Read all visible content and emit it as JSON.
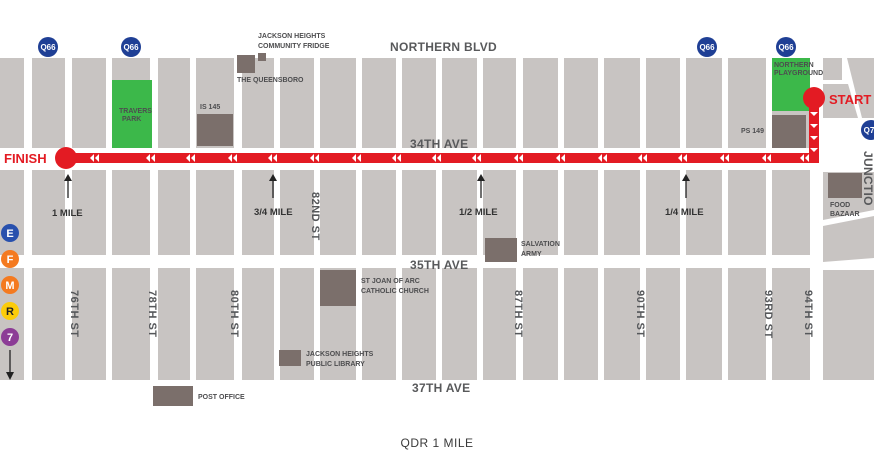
{
  "title": "QDR 1 MILE",
  "avenues": {
    "northern_blvd": "NORTHERN BLVD",
    "ave34": "34TH AVE",
    "ave35": "35TH AVE",
    "ave37": "37TH AVE",
    "junction": "JUNCTIO"
  },
  "streets": {
    "s76": "76TH ST",
    "s78": "78TH ST",
    "s80": "80TH ST",
    "s82": "82ND ST",
    "s87": "87TH ST",
    "s90": "90TH ST",
    "s93": "93RD ST",
    "s94": "94TH ST"
  },
  "route": {
    "start_label": "START",
    "finish_label": "FINISH",
    "color": "#e31b23"
  },
  "mile_markers": {
    "m1": "1 MILE",
    "m34": "3/4 MILE",
    "m12": "1/2 MILE",
    "m14": "1/4 MILE"
  },
  "landmarks": {
    "community_fridge_l1": "JACKSON HEIGHTS",
    "community_fridge_l2": "COMMUNITY FRIDGE",
    "queensboro": "THE QUEENSBORO",
    "is145": "IS 145",
    "travers_l1": "TRAVERS",
    "travers_l2": "PARK",
    "northern_pg_l1": "NORTHERN",
    "northern_pg_l2": "PLAYGROUND",
    "ps149": "PS 149",
    "food_bazaar_l1": "FOOD",
    "food_bazaar_l2": "BAZAAR",
    "salvation_l1": "SALVATION",
    "salvation_l2": "ARMY",
    "st_joan_l1": "ST JOAN OF ARC",
    "st_joan_l2": "CATHOLIC CHURCH",
    "library_l1": "JACKSON HEIGHTS",
    "library_l2": "PUBLIC LIBRARY",
    "post_office": "POST OFFICE"
  },
  "bus_stops": {
    "b1": "Q66",
    "b2": "Q66",
    "b3": "Q66",
    "b4": "Q66",
    "b5": "Q7"
  },
  "subway_lines": {
    "e": "E",
    "f": "F",
    "m": "M",
    "r": "R",
    "seven": "7"
  },
  "colors": {
    "block": "#c8c4c2",
    "park": "#3cb84a",
    "building": "#7b6f6b",
    "bus": "#1f3f95",
    "line_e": "#2850ad",
    "line_f": "#f47a20",
    "line_m": "#f47a20",
    "line_r": "#fccc0a",
    "line_7": "#8c3c96"
  }
}
